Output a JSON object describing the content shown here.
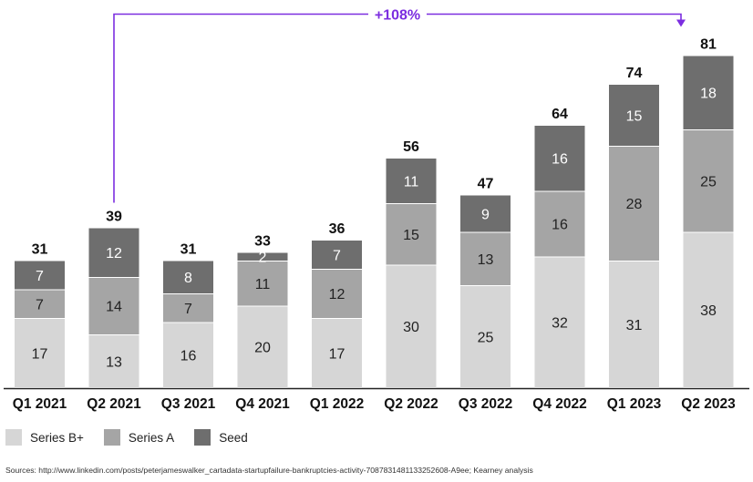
{
  "chart_data": {
    "type": "bar",
    "stacked": true,
    "categories": [
      "Q1 2021",
      "Q2 2021",
      "Q3 2021",
      "Q4 2021",
      "Q1 2022",
      "Q2 2022",
      "Q3 2022",
      "Q4 2022",
      "Q1 2023",
      "Q2 2023"
    ],
    "series": [
      {
        "name": "Series B+",
        "color": "#d6d6d6",
        "values": [
          17,
          13,
          16,
          20,
          17,
          30,
          25,
          32,
          31,
          38
        ]
      },
      {
        "name": "Series A",
        "color": "#a5a5a5",
        "values": [
          7,
          14,
          7,
          11,
          12,
          15,
          13,
          16,
          28,
          25
        ]
      },
      {
        "name": "Seed",
        "color": "#6e6e6e",
        "values": [
          7,
          12,
          8,
          2,
          7,
          11,
          9,
          16,
          15,
          18
        ]
      }
    ],
    "totals": [
      31,
      39,
      31,
      33,
      36,
      56,
      47,
      64,
      74,
      81
    ],
    "annotation": {
      "label": "+108%",
      "from": "Q2 2021",
      "to": "Q2 2023",
      "color": "#7c2ee0"
    },
    "legend_position": "bottom-left",
    "grid": false
  },
  "source": "Sources: http://www.linkedin.com/posts/peterjameswalker_cartadata-startupfailure-bankruptcies-activity-7087831481133252608-A9ee; Kearney analysis"
}
